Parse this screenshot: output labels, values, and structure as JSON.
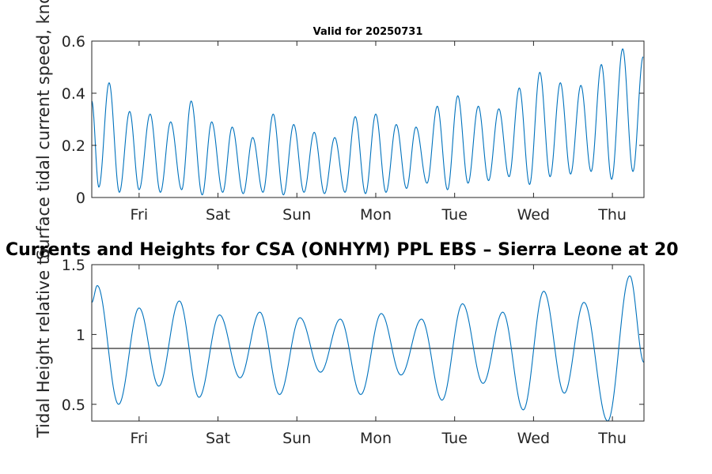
{
  "chart_data": [
    {
      "type": "line",
      "title": "Valid for 20250731",
      "ylabel": "Surface tidal current speed, knots",
      "xlim": [
        0,
        7
      ],
      "ylim": [
        0,
        0.6
      ],
      "yticks": [
        0,
        0.2,
        0.4,
        0.6
      ],
      "ytick_labels": [
        "0",
        "0.2",
        "0.4",
        "0.6"
      ],
      "xticks": [
        0.6,
        1.6,
        2.6,
        3.6,
        4.6,
        5.6,
        6.6
      ],
      "xtick_labels": [
        "Fri",
        "Sat",
        "Sun",
        "Mon",
        "Tue",
        "Wed",
        "Thu"
      ],
      "series": [
        {
          "color": "#0072bd",
          "x": [
            0.0,
            0.09,
            0.22,
            0.35,
            0.48,
            0.6,
            0.74,
            0.87,
            1.0,
            1.14,
            1.26,
            1.4,
            1.52,
            1.66,
            1.78,
            1.92,
            2.04,
            2.17,
            2.3,
            2.43,
            2.56,
            2.69,
            2.82,
            2.95,
            3.08,
            3.21,
            3.34,
            3.47,
            3.6,
            3.73,
            3.86,
            3.99,
            4.11,
            4.25,
            4.38,
            4.51,
            4.64,
            4.77,
            4.9,
            5.03,
            5.16,
            5.29,
            5.42,
            5.55,
            5.68,
            5.81,
            5.94,
            6.07,
            6.2,
            6.33,
            6.46,
            6.59,
            6.73,
            6.86,
            6.99
          ],
          "y": [
            0.37,
            0.04,
            0.44,
            0.02,
            0.33,
            0.03,
            0.32,
            0.02,
            0.29,
            0.03,
            0.37,
            0.01,
            0.29,
            0.02,
            0.27,
            0.015,
            0.23,
            0.02,
            0.32,
            0.01,
            0.28,
            0.02,
            0.25,
            0.015,
            0.23,
            0.02,
            0.31,
            0.015,
            0.32,
            0.02,
            0.28,
            0.035,
            0.27,
            0.055,
            0.35,
            0.03,
            0.39,
            0.055,
            0.35,
            0.065,
            0.34,
            0.08,
            0.42,
            0.05,
            0.48,
            0.08,
            0.44,
            0.09,
            0.43,
            0.1,
            0.51,
            0.07,
            0.57,
            0.1,
            0.54
          ]
        }
      ]
    },
    {
      "type": "line",
      "title": "Currents and Heights for CSA (ONHYM) PPL EBS  – Sierra Leone at 20",
      "ylabel": "Tidal Height relative to",
      "xlim": [
        0,
        7
      ],
      "ylim": [
        0.38,
        1.5
      ],
      "yticks": [
        0.5,
        1,
        1.5
      ],
      "ytick_labels": [
        "0.5",
        "1",
        "1.5"
      ],
      "xticks": [
        0.6,
        1.6,
        2.6,
        3.6,
        4.6,
        5.6,
        6.6
      ],
      "xtick_labels": [
        "Fri",
        "Sat",
        "Sun",
        "Mon",
        "Tue",
        "Wed",
        "Thu"
      ],
      "reference_line": 0.9,
      "series": [
        {
          "color": "#0072bd",
          "x": [
            0.0,
            0.07,
            0.34,
            0.6,
            0.85,
            1.11,
            1.36,
            1.62,
            1.88,
            2.13,
            2.38,
            2.64,
            2.9,
            3.15,
            3.41,
            3.67,
            3.92,
            4.18,
            4.44,
            4.7,
            4.96,
            5.21,
            5.47,
            5.73,
            5.99,
            6.24,
            6.54,
            6.82,
            7.0
          ],
          "y": [
            1.23,
            1.35,
            0.5,
            1.19,
            0.63,
            1.24,
            0.55,
            1.14,
            0.69,
            1.16,
            0.57,
            1.12,
            0.73,
            1.11,
            0.57,
            1.15,
            0.71,
            1.11,
            0.53,
            1.22,
            0.65,
            1.16,
            0.46,
            1.31,
            0.58,
            1.23,
            0.38,
            1.42,
            0.8
          ]
        }
      ]
    }
  ]
}
